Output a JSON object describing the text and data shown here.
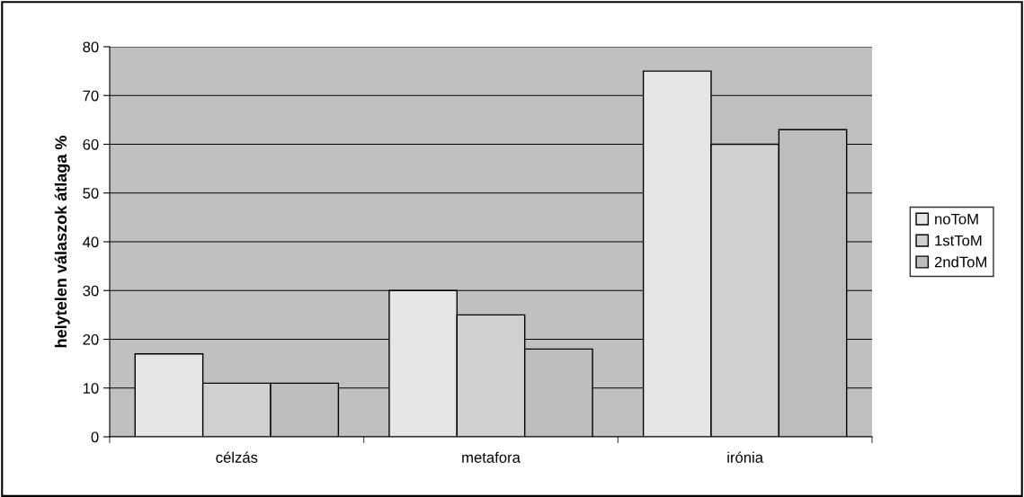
{
  "chart_data": {
    "type": "bar",
    "ylabel": "helytelen válaszok átlaga %",
    "categories": [
      "célzás",
      "metafora",
      "irónia"
    ],
    "series": [
      {
        "name": "noToM",
        "color": "#e6e6e6",
        "values": [
          17,
          30,
          75
        ]
      },
      {
        "name": "1stToM",
        "color": "#d0d0d0",
        "values": [
          11,
          25,
          60
        ]
      },
      {
        "name": "2ndToM",
        "color": "#bdbdbd",
        "values": [
          11,
          18,
          63
        ]
      }
    ],
    "ylim": [
      0,
      80
    ],
    "yticks": [
      0,
      10,
      20,
      30,
      40,
      50,
      60,
      70,
      80
    ],
    "grid": "y",
    "legend": "right"
  }
}
